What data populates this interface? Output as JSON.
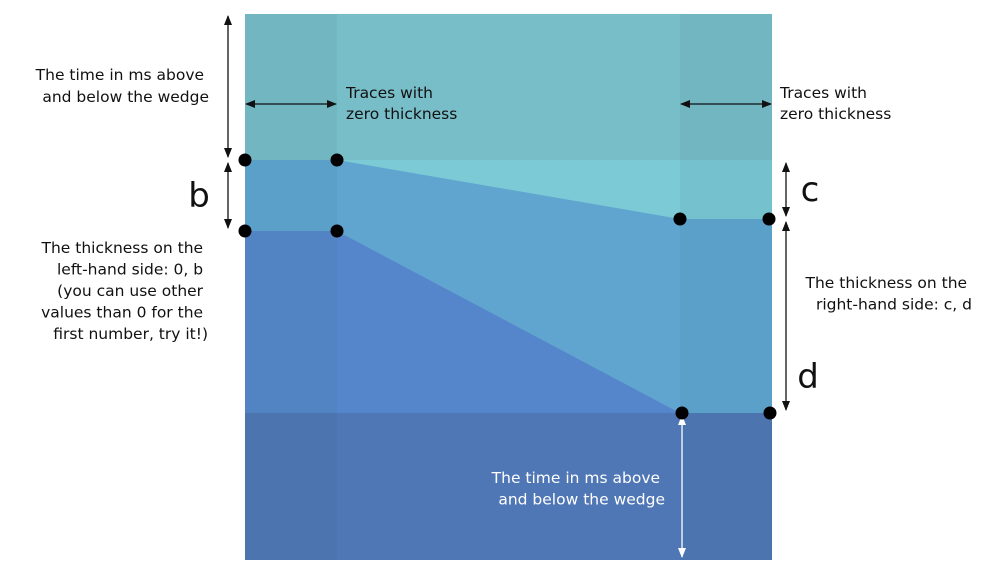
{
  "colors": {
    "top_layer": "#78bec8",
    "wedge_layer": "#7ccad6",
    "middle_layer": "#5fa5d0",
    "lower_layer": "#5585ca",
    "bottom_layer": "#4f76b5",
    "edge_trace_tint": "#3a6f8a",
    "arrow_black": "#111111",
    "arrow_white": "#ffffff",
    "point": "#000000"
  },
  "labels": {
    "time_left": [
      "The time in ms above",
      "and below the wedge"
    ],
    "traces_left": [
      "Traces with",
      "zero thickness"
    ],
    "traces_right": [
      "Traces with",
      "zero thickness"
    ],
    "b": "b",
    "c": "c",
    "d": "d",
    "thickness_left": [
      "The thickness on the",
      "left-hand side: 0, b",
      "(you can use other",
      "values than 0 for the",
      "first number, try it!)"
    ],
    "thickness_right": [
      "The thickness on the",
      "right-hand side: c, d"
    ],
    "time_bottom": [
      "The time in ms above",
      "and below the wedge"
    ]
  }
}
